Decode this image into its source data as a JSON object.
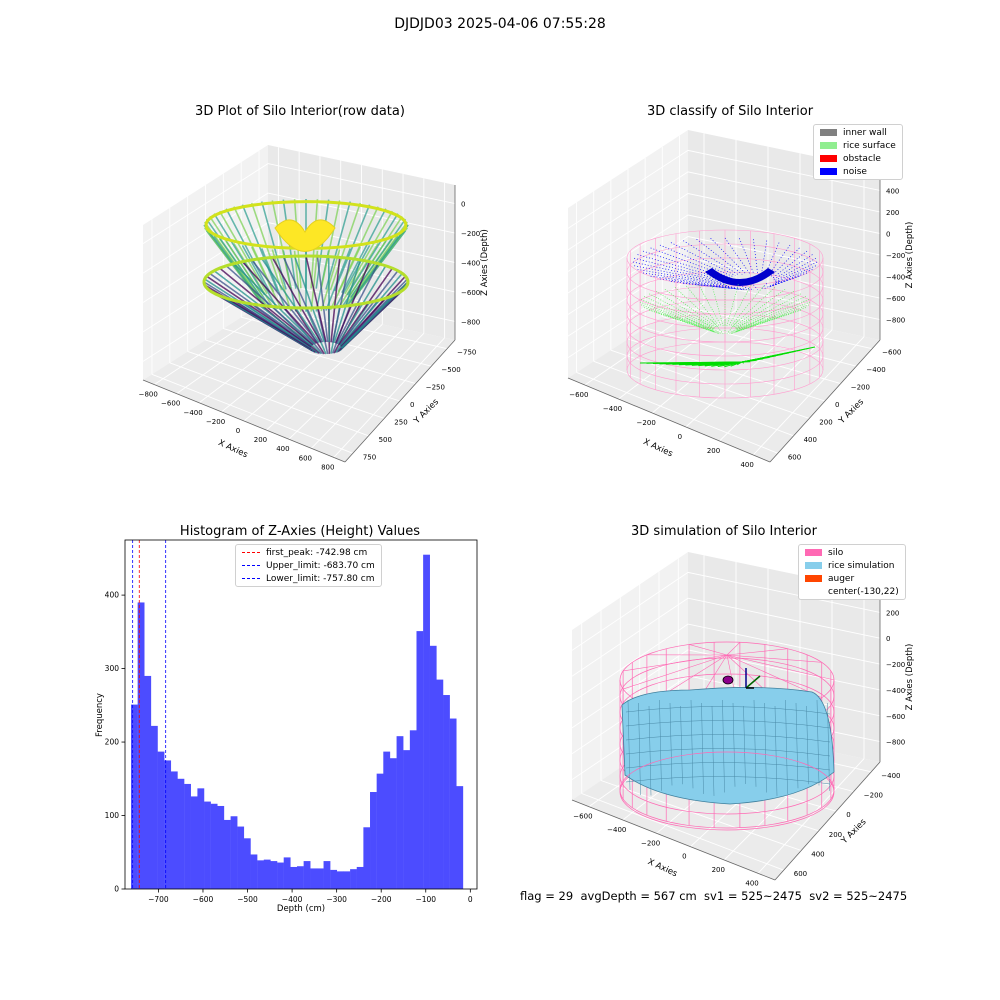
{
  "suptitle": "DJDJD03 2025-04-06 07:55:28",
  "footer": "flag = 29  avgDepth = 567 cm  sv1 = 525~2475  sv2 = 525~2475",
  "panels": {
    "raw": {
      "title": "3D Plot of Silo Interior(row data)",
      "xlabel": "X Axies",
      "ylabel": "Y Axies",
      "zlabel": "Z Axies (Depth)",
      "xticks": [
        "−800",
        "−600",
        "−400",
        "−200",
        "0",
        "200",
        "400",
        "600",
        "800"
      ],
      "yticks": [
        "750",
        "500",
        "250",
        "0",
        "−250",
        "−500",
        "−750"
      ],
      "zticks": [
        "0",
        "−200",
        "−400",
        "−600",
        "−800"
      ]
    },
    "classify": {
      "title": "3D classify of Silo Interior",
      "xlabel": "X Axies",
      "ylabel": "Y Axies",
      "zlabel": "Z Axies (Depth)",
      "xticks": [
        "−600",
        "−400",
        "−200",
        "0",
        "200",
        "400"
      ],
      "yticks": [
        "600",
        "400",
        "200",
        "0",
        "−200",
        "−400",
        "−600"
      ],
      "zticks": [
        "400",
        "200",
        "0",
        "−200",
        "−400",
        "−600",
        "−800"
      ],
      "legend": [
        {
          "label": "inner wall",
          "color": "#808080"
        },
        {
          "label": "rice surface",
          "color": "#90ee90"
        },
        {
          "label": "obstacle",
          "color": "#ff0000"
        },
        {
          "label": "noise",
          "color": "#0000ff"
        }
      ]
    },
    "simulation": {
      "title": "3D simulation of Silo Interior",
      "xlabel": "X Axies",
      "ylabel": "Y Axies",
      "zlabel": "Z Axies (Depth)",
      "xticks": [
        "−600",
        "−400",
        "−200",
        "0",
        "200",
        "400"
      ],
      "yticks": [
        "600",
        "400",
        "200",
        "0",
        "−200",
        "−400"
      ],
      "zticks": [
        "200",
        "0",
        "−200",
        "−400",
        "−600",
        "−800"
      ],
      "legend": [
        {
          "label": "silo",
          "color": "#ff69b4"
        },
        {
          "label": "rice simulation",
          "color": "#87ceeb"
        },
        {
          "label": "auger",
          "color": "#ff4500"
        },
        {
          "label": "center(-130,22)",
          "color": ""
        }
      ]
    }
  },
  "chart_data": {
    "type": "bar",
    "title": "Histogram of Z-Axies (Height) Values",
    "xlabel": "Depth (cm)",
    "ylabel": "Frequency",
    "xlim": [
      -775,
      15
    ],
    "ylim": [
      0,
      475
    ],
    "bin_start": -761.5,
    "bin_width": 14.9,
    "values": [
      251,
      390,
      290,
      222,
      187,
      175,
      160,
      150,
      143,
      126,
      137,
      119,
      116,
      113,
      94,
      99,
      85,
      69,
      47,
      39,
      40,
      38,
      36,
      43,
      30,
      31,
      38,
      28,
      28,
      38,
      26,
      24,
      24,
      27,
      30,
      84,
      132,
      157,
      187,
      178,
      208,
      189,
      216,
      351,
      455,
      331,
      285,
      264,
      232,
      140
    ],
    "xticks": [
      -700,
      -600,
      -500,
      -400,
      -300,
      -200,
      -100,
      0
    ],
    "xtick_labels": [
      "−700",
      "−600",
      "−500",
      "−400",
      "−300",
      "−200",
      "−100",
      "0"
    ],
    "yticks": [
      0,
      100,
      200,
      300,
      400
    ],
    "ytick_labels": [
      "0",
      "100",
      "200",
      "300",
      "400"
    ],
    "bar_color": "#4c4cff",
    "lines": [
      {
        "label": "first_peak: -742.98 cm",
        "x": -742.98,
        "color": "#ff0000"
      },
      {
        "label": "Upper_limit: -683.70 cm",
        "x": -683.7,
        "color": "#0000ff"
      },
      {
        "label": "Lower_limit: -757.80 cm",
        "x": -757.8,
        "color": "#0000ff"
      }
    ]
  }
}
